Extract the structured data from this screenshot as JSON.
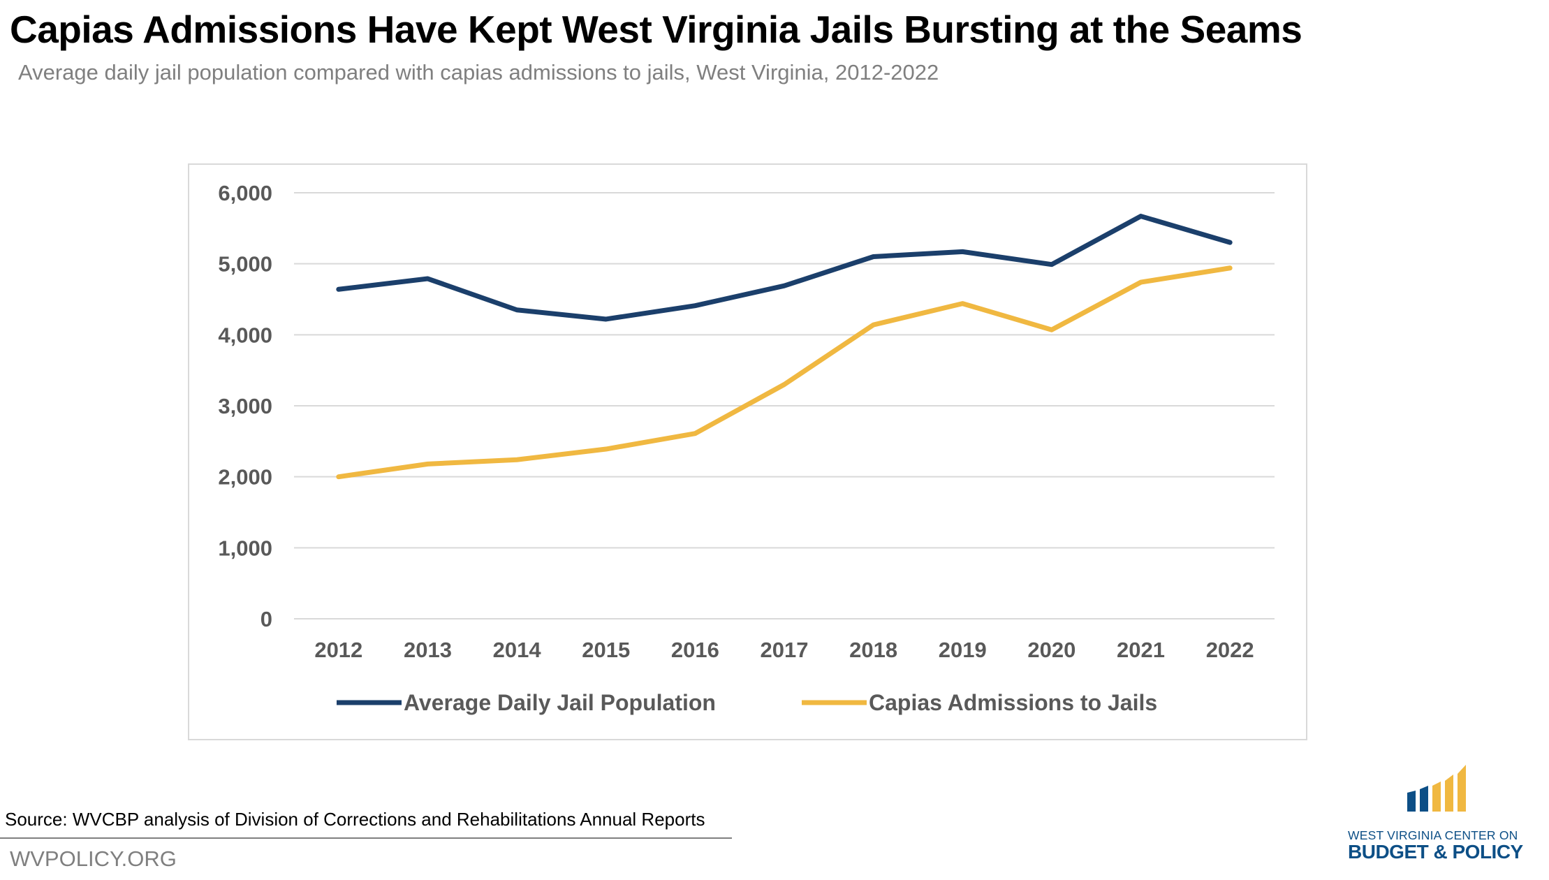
{
  "header": {
    "title": "Capias Admissions Have Kept West Virginia Jails Bursting at the Seams",
    "subtitle": "Average daily jail population compared with capias admissions to jails, West Virginia, 2012-2022"
  },
  "chart_data": {
    "type": "line",
    "title": "",
    "xlabel": "",
    "ylabel": "",
    "x": [
      "2012",
      "2013",
      "2014",
      "2015",
      "2016",
      "2017",
      "2018",
      "2019",
      "2020",
      "2021",
      "2022"
    ],
    "ylim": [
      0,
      6000
    ],
    "yticks": [
      "0",
      "1,000",
      "2,000",
      "3,000",
      "4,000",
      "5,000",
      "6,000"
    ],
    "ytick_values": [
      0,
      1000,
      2000,
      3000,
      4000,
      5000,
      6000
    ],
    "grid": "horizontal",
    "legend": "bottom",
    "series": [
      {
        "name": "Average Daily Jail Population",
        "color": "#1b3f6b",
        "values": [
          4640,
          4790,
          4350,
          4220,
          4410,
          4690,
          5100,
          5170,
          4990,
          5670,
          5300
        ]
      },
      {
        "name": "Capias Admissions to Jails",
        "color": "#f0b841",
        "values": [
          2000,
          2180,
          2240,
          2390,
          2610,
          3300,
          4140,
          4440,
          4070,
          4740,
          4940
        ]
      }
    ]
  },
  "footer": {
    "source": "Source: WVCBP analysis of Division of Corrections and Rehabilitations Annual Reports",
    "site": "WVPOLICY.ORG"
  },
  "logo": {
    "line1": "WEST VIRGINIA CENTER ON",
    "line2": "BUDGET & POLICY",
    "colors": {
      "blue": "#0d4f86",
      "gold": "#f0b841"
    }
  }
}
